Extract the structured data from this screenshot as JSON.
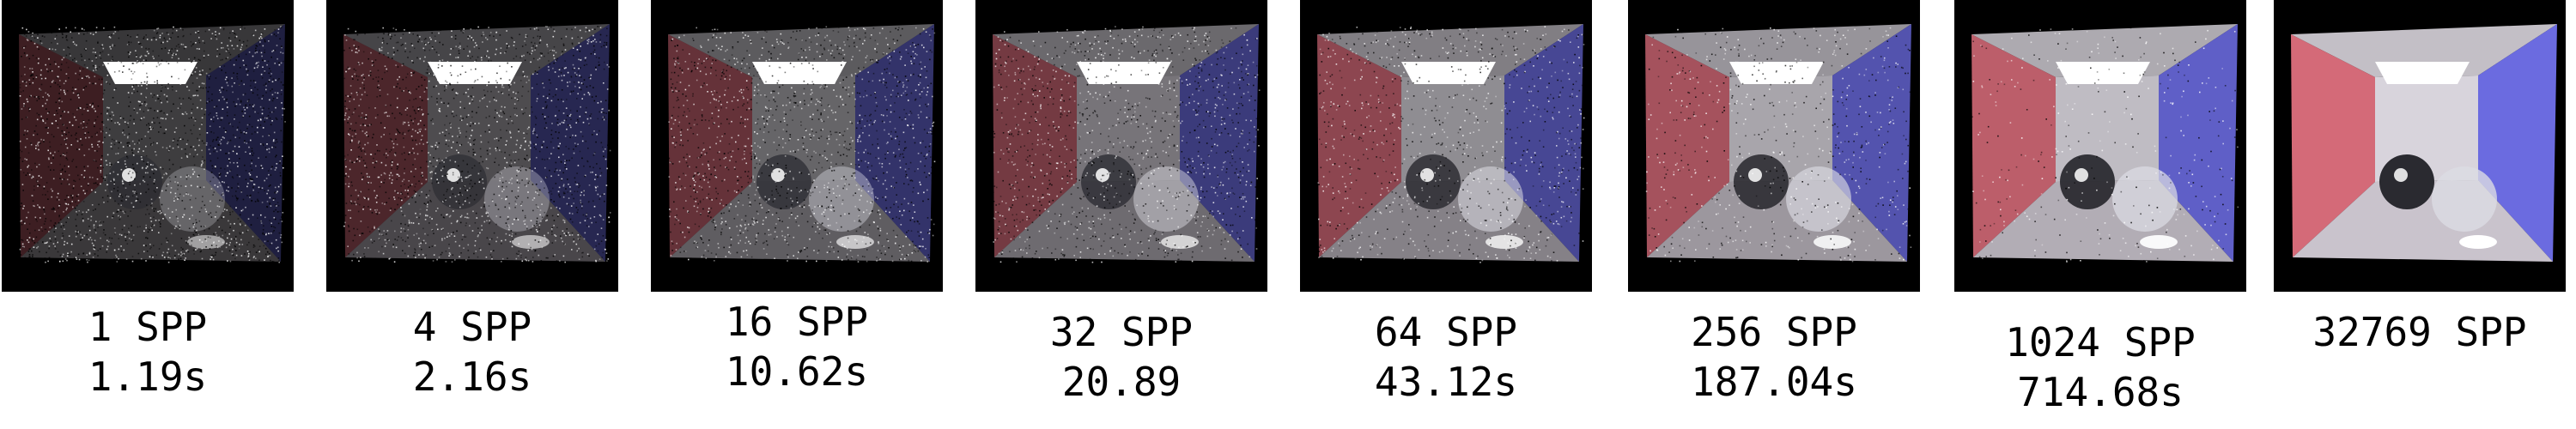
{
  "panels": [
    {
      "spp": "1 SPP",
      "time": "1.19s",
      "noise": 0.95
    },
    {
      "spp": "4 SPP",
      "time": "2.16s",
      "noise": 0.85
    },
    {
      "spp": "16 SPP",
      "time": "10.62s",
      "noise": 0.7
    },
    {
      "spp": "32 SPP",
      "time": "20.89",
      "noise": 0.6
    },
    {
      "spp": "64 SPP",
      "time": "43.12s",
      "noise": 0.45
    },
    {
      "spp": "256 SPP",
      "time": "187.04s",
      "noise": 0.3
    },
    {
      "spp": "1024 SPP",
      "time": "714.68s",
      "noise": 0.15
    },
    {
      "spp": "32769 SPP",
      "time": "",
      "noise": 0.0
    }
  ],
  "colors": {
    "left_wall": "#d46a78",
    "right_wall": "#6b6be0",
    "back_wall": "#d8d4dc",
    "floor": "#c9c3cc",
    "light": "#ffffff",
    "frame": "#000000"
  }
}
